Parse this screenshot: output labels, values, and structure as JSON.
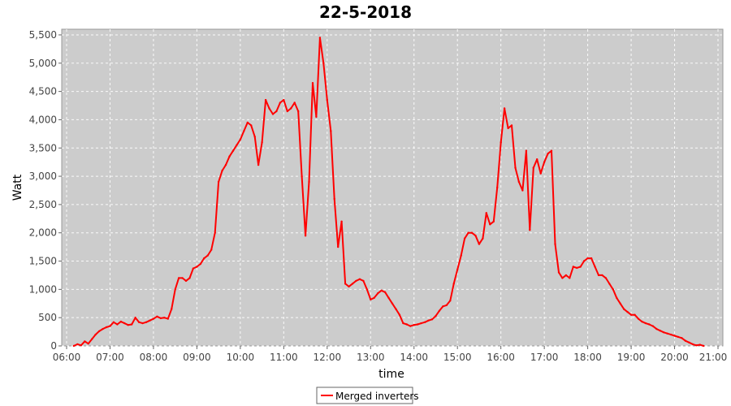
{
  "chart_data": {
    "type": "line",
    "title": "22-5-2018",
    "xlabel": "time",
    "ylabel": "Watt",
    "x_ticks": [
      "06:00",
      "07:00",
      "08:00",
      "09:00",
      "10:00",
      "11:00",
      "12:00",
      "13:00",
      "14:00",
      "15:00",
      "16:00",
      "17:00",
      "18:00",
      "19:00",
      "20:00",
      "21:00"
    ],
    "y_ticks": [
      "0",
      "500",
      "1,000",
      "1,500",
      "2,000",
      "2,500",
      "3,000",
      "3,500",
      "4,000",
      "4,500",
      "5,000",
      "5,500"
    ],
    "xlim": [
      "06:00",
      "21:00"
    ],
    "ylim": [
      0,
      5600
    ],
    "grid": true,
    "legend_position": "bottom",
    "series": [
      {
        "name": "Merged inverters",
        "color": "#ff0000",
        "points": [
          [
            "06:10",
            0
          ],
          [
            "06:15",
            30
          ],
          [
            "06:20",
            10
          ],
          [
            "06:25",
            80
          ],
          [
            "06:30",
            40
          ],
          [
            "06:35",
            120
          ],
          [
            "06:40",
            200
          ],
          [
            "06:45",
            260
          ],
          [
            "06:50",
            300
          ],
          [
            "06:55",
            330
          ],
          [
            "07:00",
            350
          ],
          [
            "07:05",
            420
          ],
          [
            "07:10",
            380
          ],
          [
            "07:15",
            430
          ],
          [
            "07:20",
            400
          ],
          [
            "07:25",
            370
          ],
          [
            "07:30",
            380
          ],
          [
            "07:35",
            500
          ],
          [
            "07:40",
            420
          ],
          [
            "07:45",
            400
          ],
          [
            "07:50",
            420
          ],
          [
            "07:55",
            450
          ],
          [
            "08:00",
            480
          ],
          [
            "08:05",
            520
          ],
          [
            "08:10",
            490
          ],
          [
            "08:15",
            500
          ],
          [
            "08:20",
            480
          ],
          [
            "08:25",
            650
          ],
          [
            "08:30",
            1000
          ],
          [
            "08:35",
            1200
          ],
          [
            "08:40",
            1200
          ],
          [
            "08:45",
            1150
          ],
          [
            "08:50",
            1200
          ],
          [
            "08:55",
            1370
          ],
          [
            "09:00",
            1400
          ],
          [
            "09:05",
            1450
          ],
          [
            "09:10",
            1550
          ],
          [
            "09:15",
            1600
          ],
          [
            "09:20",
            1700
          ],
          [
            "09:25",
            2000
          ],
          [
            "09:30",
            2900
          ],
          [
            "09:35",
            3100
          ],
          [
            "09:40",
            3200
          ],
          [
            "09:45",
            3350
          ],
          [
            "09:50",
            3450
          ],
          [
            "09:55",
            3550
          ],
          [
            "10:00",
            3650
          ],
          [
            "10:05",
            3800
          ],
          [
            "10:10",
            3950
          ],
          [
            "10:15",
            3900
          ],
          [
            "10:20",
            3700
          ],
          [
            "10:25",
            3200
          ],
          [
            "10:30",
            3600
          ],
          [
            "10:35",
            4350
          ],
          [
            "10:40",
            4200
          ],
          [
            "10:45",
            4100
          ],
          [
            "10:50",
            4150
          ],
          [
            "10:55",
            4300
          ],
          [
            "11:00",
            4350
          ],
          [
            "11:05",
            4150
          ],
          [
            "11:10",
            4200
          ],
          [
            "11:15",
            4300
          ],
          [
            "11:20",
            4150
          ],
          [
            "11:25",
            3000
          ],
          [
            "11:30",
            1950
          ],
          [
            "11:35",
            2900
          ],
          [
            "11:40",
            4650
          ],
          [
            "11:45",
            4050
          ],
          [
            "11:50",
            5450
          ],
          [
            "11:55",
            5000
          ],
          [
            "12:00",
            4350
          ],
          [
            "12:05",
            3800
          ],
          [
            "12:10",
            2600
          ],
          [
            "12:15",
            1750
          ],
          [
            "12:20",
            2200
          ],
          [
            "12:25",
            1100
          ],
          [
            "12:30",
            1050
          ],
          [
            "12:35",
            1100
          ],
          [
            "12:40",
            1150
          ],
          [
            "12:45",
            1180
          ],
          [
            "12:50",
            1150
          ],
          [
            "12:55",
            1000
          ],
          [
            "13:00",
            820
          ],
          [
            "13:05",
            850
          ],
          [
            "13:10",
            930
          ],
          [
            "13:15",
            980
          ],
          [
            "13:20",
            950
          ],
          [
            "13:25",
            850
          ],
          [
            "13:30",
            750
          ],
          [
            "13:35",
            650
          ],
          [
            "13:40",
            550
          ],
          [
            "13:45",
            400
          ],
          [
            "13:50",
            380
          ],
          [
            "13:55",
            350
          ],
          [
            "14:00",
            370
          ],
          [
            "14:05",
            380
          ],
          [
            "14:10",
            400
          ],
          [
            "14:15",
            420
          ],
          [
            "14:20",
            450
          ],
          [
            "14:25",
            470
          ],
          [
            "14:30",
            530
          ],
          [
            "14:35",
            620
          ],
          [
            "14:40",
            700
          ],
          [
            "14:45",
            720
          ],
          [
            "14:50",
            800
          ],
          [
            "14:55",
            1100
          ],
          [
            "15:00",
            1350
          ],
          [
            "15:05",
            1600
          ],
          [
            "15:10",
            1900
          ],
          [
            "15:15",
            2000
          ],
          [
            "15:20",
            2000
          ],
          [
            "15:25",
            1950
          ],
          [
            "15:30",
            1800
          ],
          [
            "15:35",
            1900
          ],
          [
            "15:40",
            2350
          ],
          [
            "15:45",
            2150
          ],
          [
            "15:50",
            2200
          ],
          [
            "15:55",
            2800
          ],
          [
            "16:00",
            3600
          ],
          [
            "16:05",
            4200
          ],
          [
            "16:10",
            3850
          ],
          [
            "16:15",
            3900
          ],
          [
            "16:20",
            3150
          ],
          [
            "16:25",
            2900
          ],
          [
            "16:30",
            2750
          ],
          [
            "16:35",
            3450
          ],
          [
            "16:40",
            2050
          ],
          [
            "16:45",
            3150
          ],
          [
            "16:50",
            3300
          ],
          [
            "16:55",
            3050
          ],
          [
            "17:00",
            3250
          ],
          [
            "17:05",
            3400
          ],
          [
            "17:10",
            3450
          ],
          [
            "17:15",
            1800
          ],
          [
            "17:20",
            1300
          ],
          [
            "17:25",
            1200
          ],
          [
            "17:30",
            1250
          ],
          [
            "17:35",
            1200
          ],
          [
            "17:40",
            1400
          ],
          [
            "17:45",
            1380
          ],
          [
            "17:50",
            1400
          ],
          [
            "17:55",
            1500
          ],
          [
            "18:00",
            1550
          ],
          [
            "18:05",
            1550
          ],
          [
            "18:10",
            1400
          ],
          [
            "18:15",
            1250
          ],
          [
            "18:20",
            1250
          ],
          [
            "18:25",
            1200
          ],
          [
            "18:30",
            1100
          ],
          [
            "18:35",
            1000
          ],
          [
            "18:40",
            850
          ],
          [
            "18:45",
            750
          ],
          [
            "18:50",
            650
          ],
          [
            "18:55",
            600
          ],
          [
            "19:00",
            550
          ],
          [
            "19:05",
            550
          ],
          [
            "19:10",
            480
          ],
          [
            "19:15",
            430
          ],
          [
            "19:20",
            400
          ],
          [
            "19:25",
            380
          ],
          [
            "19:30",
            350
          ],
          [
            "19:35",
            300
          ],
          [
            "19:40",
            270
          ],
          [
            "19:45",
            240
          ],
          [
            "19:50",
            220
          ],
          [
            "19:55",
            200
          ],
          [
            "20:00",
            180
          ],
          [
            "20:05",
            160
          ],
          [
            "20:10",
            140
          ],
          [
            "20:15",
            90
          ],
          [
            "20:20",
            60
          ],
          [
            "20:25",
            30
          ],
          [
            "20:30",
            10
          ],
          [
            "20:35",
            20
          ],
          [
            "20:40",
            0
          ]
        ]
      }
    ]
  }
}
